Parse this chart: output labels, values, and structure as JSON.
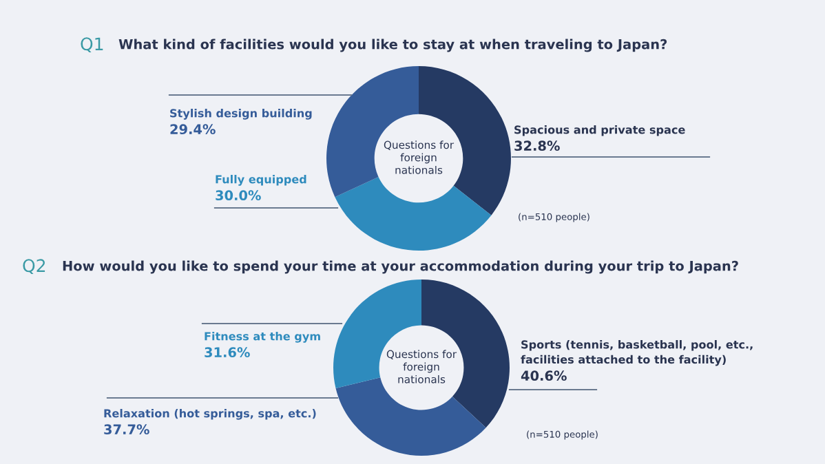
{
  "chart_data": [
    {
      "type": "donut",
      "title": "What kind of facilities would you like to stay at when traveling to Japan?",
      "categories": [
        "Spacious and private space",
        "Fully equipped",
        "Stylish design building"
      ],
      "values": [
        32.8,
        30.0,
        29.4
      ],
      "value_labels": [
        "32.8%",
        "30.0%",
        "29.4%"
      ],
      "colors": [
        "#253a63",
        "#2e8bbd",
        "#355c99"
      ],
      "annotations": [
        "Q1",
        "Questions for\nforeign\nnationals",
        "(n=510 people)"
      ]
    },
    {
      "type": "donut",
      "title": "How would you like to spend your time at your accommodation during your trip to Japan?",
      "categories": [
        "Sports (tennis, basketball, pool, etc.,\nfacilities attached to the facility)",
        "Relaxation (hot springs, spa, etc.)",
        "Fitness at the gym"
      ],
      "values": [
        40.6,
        37.7,
        31.6
      ],
      "value_labels": [
        "40.6%",
        "37.7%",
        "31.6%"
      ],
      "colors": [
        "#253a63",
        "#355c99",
        "#2e8bbd"
      ],
      "annotations": [
        "Q2",
        "Questions for\nforeign\nnationals",
        "(n=510 people)"
      ]
    }
  ]
}
